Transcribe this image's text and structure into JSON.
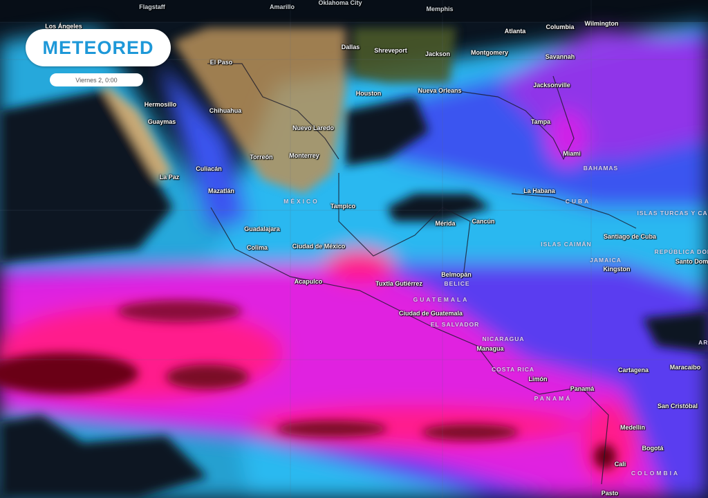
{
  "brand": {
    "name": "METEORED",
    "color": "#1d98d8"
  },
  "timestamp": "Viernes 2, 0:00",
  "legend_colors": {
    "ocean": "#0a1420",
    "light": "#2ab8f0",
    "moderate": "#3a55f0",
    "heavy": "#e020e0",
    "intense": "#ff1a8c",
    "extreme": "#6a0018",
    "land": "#b8915a"
  },
  "cities": [
    {
      "name": "Flagstaff",
      "top": true
    },
    {
      "name": "Amarillo",
      "top": true
    },
    {
      "name": "Oklahoma City",
      "top": true
    },
    {
      "name": "Memphis",
      "top": true
    },
    {
      "name": "Los Ángeles"
    },
    {
      "name": "El Paso"
    },
    {
      "name": "Dallas"
    },
    {
      "name": "Shreveport"
    },
    {
      "name": "Jackson"
    },
    {
      "name": "Atlanta"
    },
    {
      "name": "Columbia"
    },
    {
      "name": "Wilmington"
    },
    {
      "name": "Montgomery"
    },
    {
      "name": "Savannah"
    },
    {
      "name": "Houston"
    },
    {
      "name": "Nueva Orleans"
    },
    {
      "name": "Jacksonville"
    },
    {
      "name": "Hermosillo"
    },
    {
      "name": "Chihuahua"
    },
    {
      "name": "Guaymas"
    },
    {
      "name": "Nuevo Laredo"
    },
    {
      "name": "Tampa"
    },
    {
      "name": "Miami"
    },
    {
      "name": "Torreón"
    },
    {
      "name": "Monterrey"
    },
    {
      "name": "Culiacán"
    },
    {
      "name": "La Paz"
    },
    {
      "name": "Mazatlán"
    },
    {
      "name": "La Habana"
    },
    {
      "name": "Tampico"
    },
    {
      "name": "Mérida"
    },
    {
      "name": "Cancún"
    },
    {
      "name": "Guadalajara"
    },
    {
      "name": "Santiago de Cuba"
    },
    {
      "name": "Colima"
    },
    {
      "name": "Ciudad de México"
    },
    {
      "name": "Santo Domingo"
    },
    {
      "name": "Kingston"
    },
    {
      "name": "Belmopán"
    },
    {
      "name": "Acapulco"
    },
    {
      "name": "Tuxtla Gutiérrez"
    },
    {
      "name": "Ciudad de Guatemala"
    },
    {
      "name": "Managua"
    },
    {
      "name": "Cartagena"
    },
    {
      "name": "Maracaibo"
    },
    {
      "name": "Limón"
    },
    {
      "name": "Panamá"
    },
    {
      "name": "San Cristóbal"
    },
    {
      "name": "Medellín"
    },
    {
      "name": "Bogotá"
    },
    {
      "name": "Cali"
    },
    {
      "name": "Pasto"
    }
  ],
  "countries": [
    "BAHAMAS",
    "CUBA",
    "MÉXICO",
    "ISLAS TURCAS Y CAICOS",
    "ISLAS CAIMÁN",
    "REPÚBLICA DOMINICANA",
    "JAMAICA",
    "BELICE",
    "GUATEMALA",
    "EL SALVADOR",
    "NICARAGUA",
    "COSTA RICA",
    "PANAMÁ",
    "COLOMBIA",
    "ARUBA"
  ]
}
